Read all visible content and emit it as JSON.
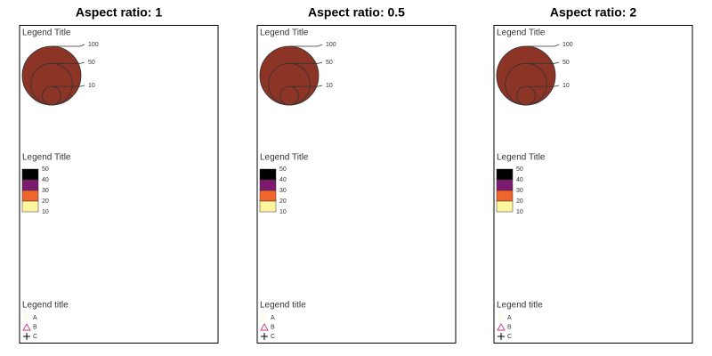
{
  "panels": [
    {
      "title": "Aspect ratio: 1",
      "size_legend": {
        "title": "Legend Title",
        "values": [
          100,
          50,
          10
        ]
      },
      "color_legend": {
        "title": "Legend Title",
        "breaks": [
          50,
          40,
          30,
          20,
          10
        ],
        "colors": [
          "#000000",
          "#7b1a6e",
          "#f0652b",
          "#fff59d"
        ]
      },
      "shape_legend": {
        "title": "Legend title",
        "labels": [
          "A",
          "B",
          "C"
        ]
      }
    },
    {
      "title": "Aspect ratio: 0.5",
      "size_legend": {
        "title": "Legend Title",
        "values": [
          100,
          50,
          10
        ]
      },
      "color_legend": {
        "title": "Legend Title",
        "breaks": [
          50,
          40,
          30,
          20,
          10
        ],
        "colors": [
          "#000000",
          "#7b1a6e",
          "#f0652b",
          "#fff59d"
        ]
      },
      "shape_legend": {
        "title": "Legend title",
        "labels": [
          "A",
          "B",
          "C"
        ]
      }
    },
    {
      "title": "Aspect ratio: 2",
      "size_legend": {
        "title": "Legend Title",
        "values": [
          100,
          50,
          10
        ]
      },
      "color_legend": {
        "title": "Legend Title",
        "breaks": [
          50,
          40,
          30,
          20,
          10
        ],
        "colors": [
          "#000000",
          "#7b1a6e",
          "#f0652b",
          "#fff59d"
        ]
      },
      "shape_legend": {
        "title": "Legend title",
        "labels": [
          "A",
          "B",
          "C"
        ]
      }
    }
  ]
}
